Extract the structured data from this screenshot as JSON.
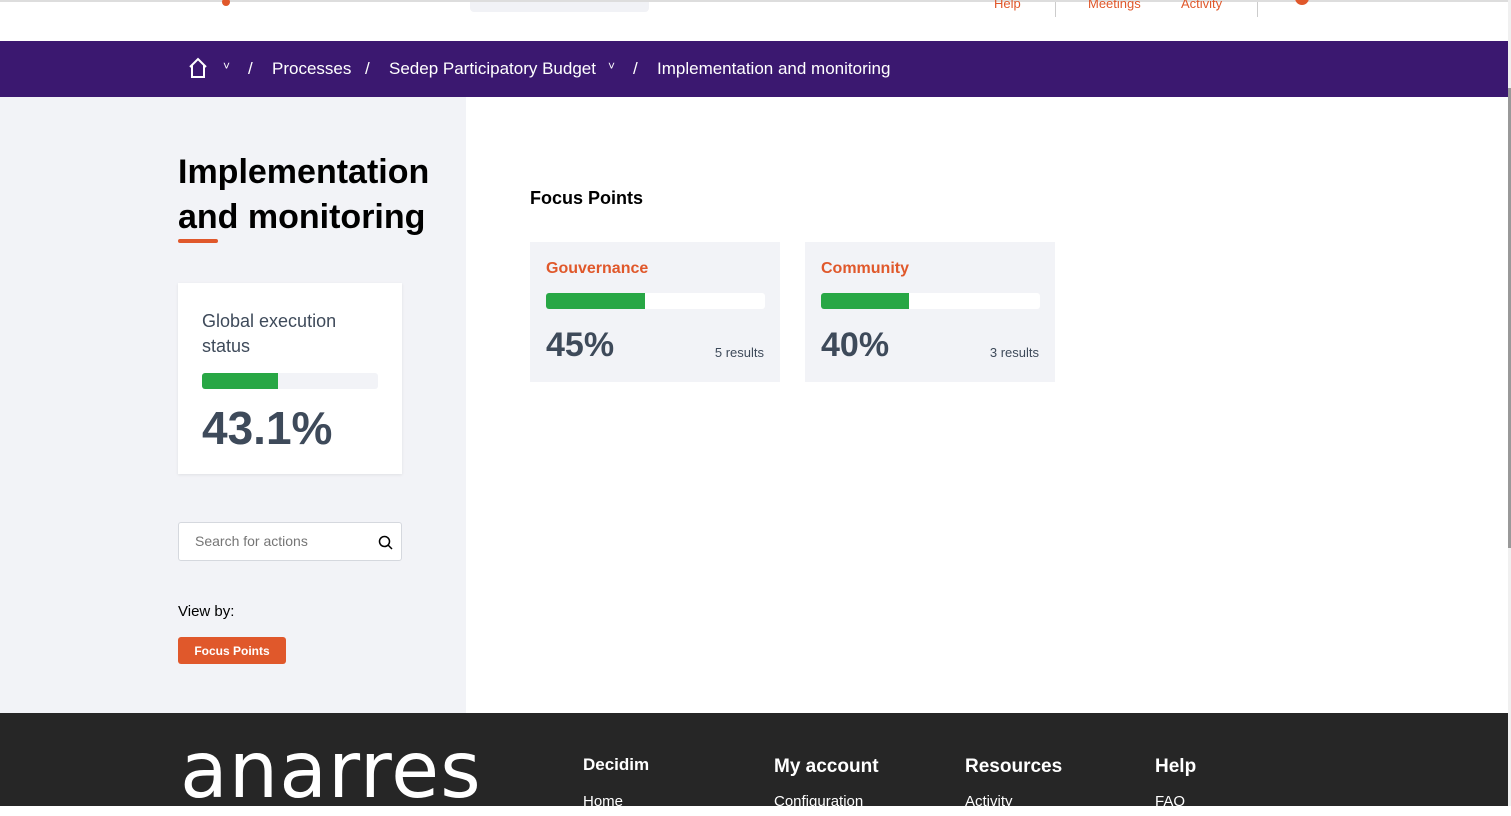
{
  "topbar": {
    "links": [
      "Help",
      "Meetings",
      "Activity"
    ]
  },
  "breadcrumb": {
    "items": [
      "Processes",
      "Sedep Participatory Budget",
      "Implementation and monitoring"
    ]
  },
  "page": {
    "title": "Implementation and monitoring"
  },
  "global_status": {
    "label": "Global execution status",
    "value": "43.1%",
    "progress": 43.1
  },
  "search": {
    "placeholder": "Search for actions"
  },
  "view_by": {
    "label": "View by:",
    "button": "Focus Points"
  },
  "focus_points": {
    "title": "Focus Points",
    "cards": [
      {
        "name": "Gouvernance",
        "value": "45%",
        "progress": 45,
        "results": "5 results"
      },
      {
        "name": "Community",
        "value": "40%",
        "progress": 40,
        "results": "3 results"
      }
    ]
  },
  "footer": {
    "logo": "anarres",
    "columns": [
      {
        "title": "Decidim",
        "first": "Home"
      },
      {
        "title": "My account",
        "first": "Configuration"
      },
      {
        "title": "Resources",
        "first": "Activity"
      },
      {
        "title": "Help",
        "first": "FAQ"
      }
    ]
  },
  "colors": {
    "brand": "#3b1870",
    "accent": "#e0582b",
    "progress": "#28a745"
  }
}
